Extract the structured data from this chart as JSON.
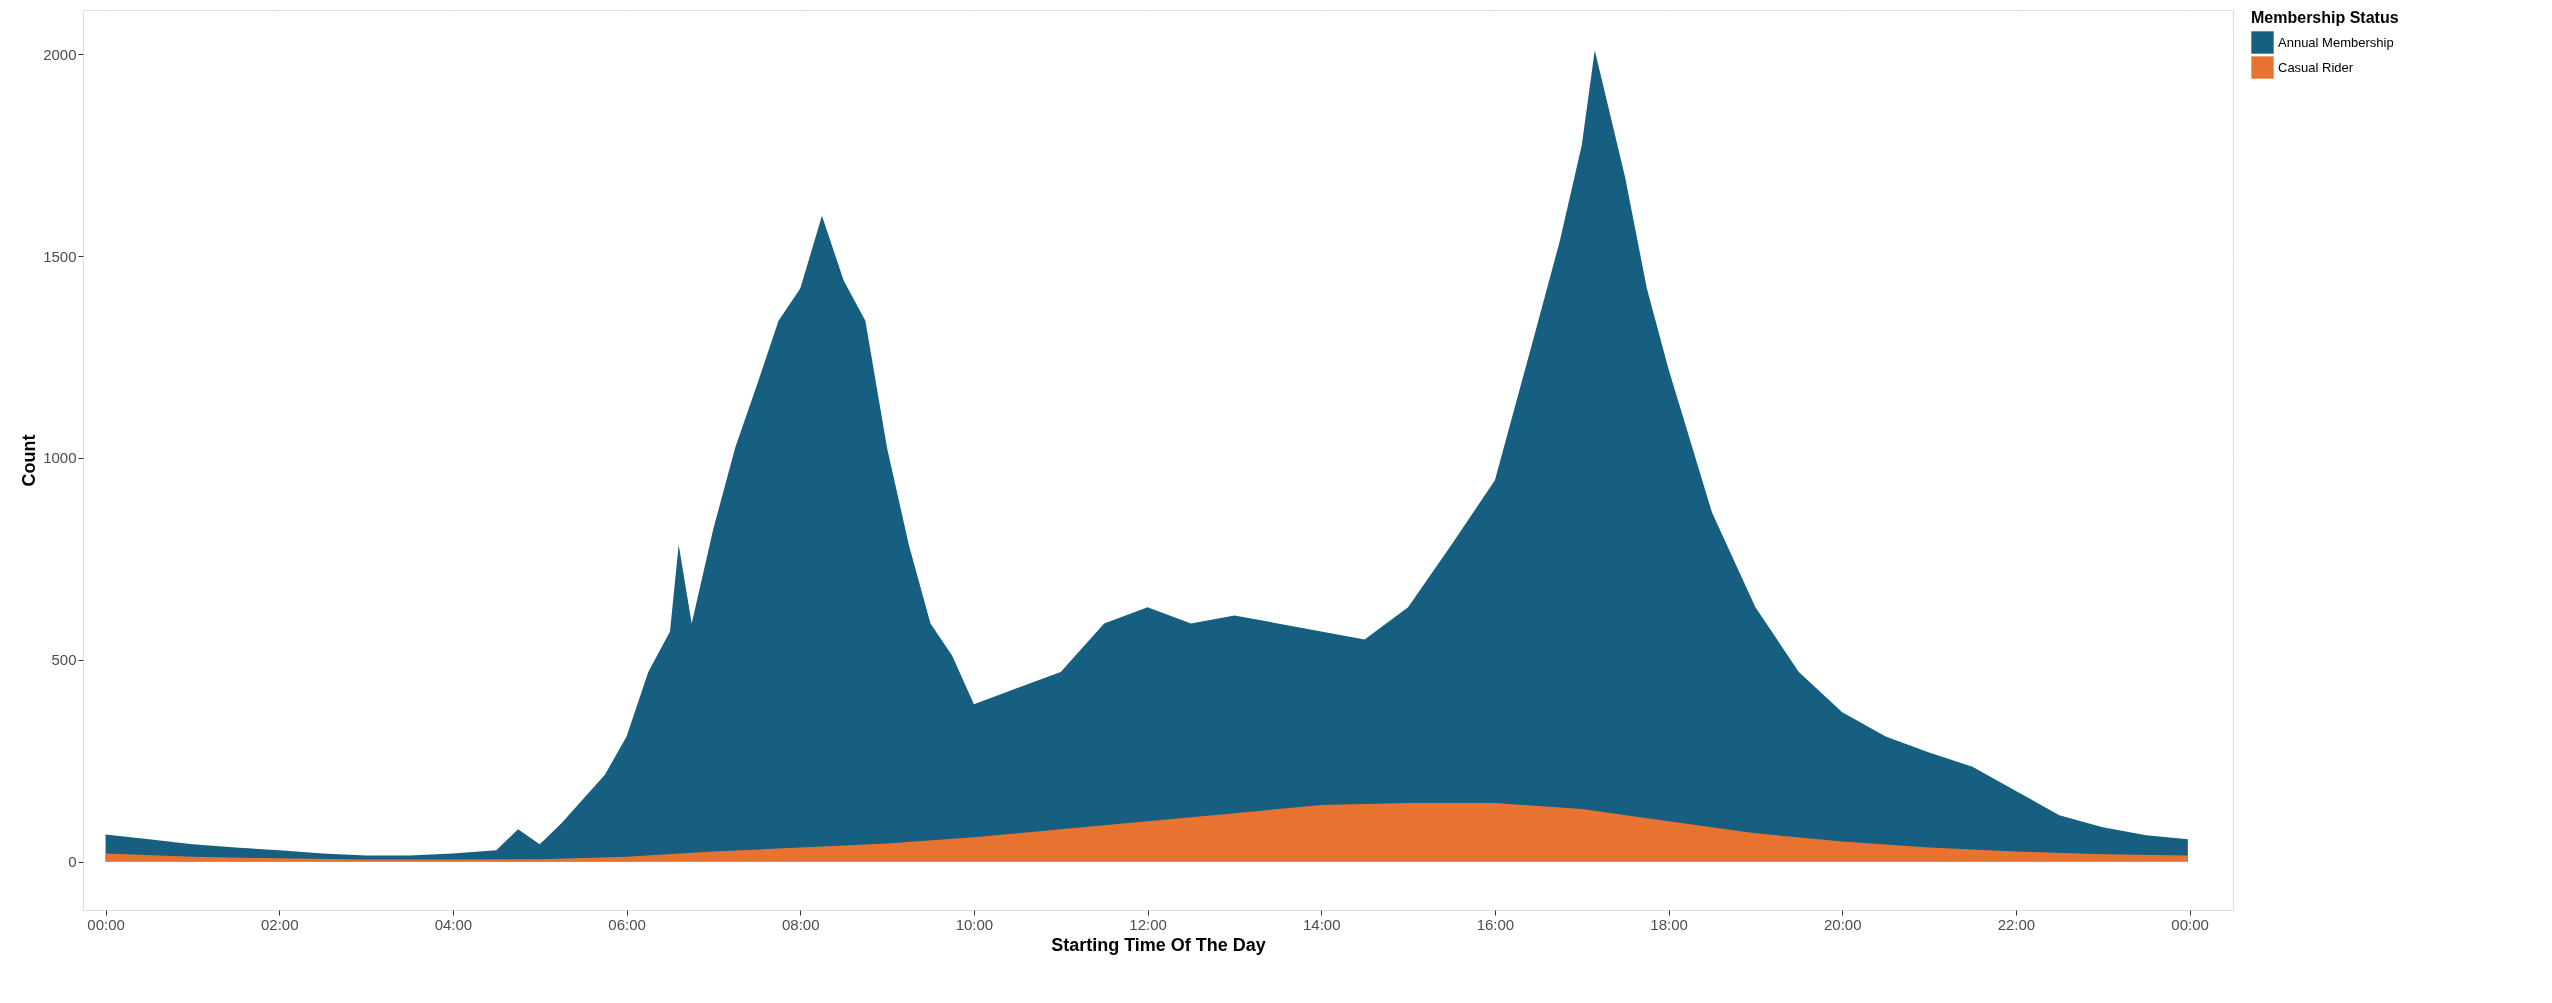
{
  "chart_data": {
    "type": "area",
    "xlabel": "Starting Time Of The Day",
    "ylabel": "Count",
    "legend_title": "Membership Status",
    "xlim": [
      -0.26,
      24.5
    ],
    "ylim": [
      -120,
      2110
    ],
    "xticks": [
      {
        "value": 0,
        "label": "00:00"
      },
      {
        "value": 2,
        "label": "02:00"
      },
      {
        "value": 4,
        "label": "04:00"
      },
      {
        "value": 6,
        "label": "06:00"
      },
      {
        "value": 8,
        "label": "08:00"
      },
      {
        "value": 10,
        "label": "10:00"
      },
      {
        "value": 12,
        "label": "12:00"
      },
      {
        "value": 14,
        "label": "14:00"
      },
      {
        "value": 16,
        "label": "16:00"
      },
      {
        "value": 18,
        "label": "18:00"
      },
      {
        "value": 20,
        "label": "20:00"
      },
      {
        "value": 22,
        "label": "22:00"
      },
      {
        "value": 24,
        "label": "00:00"
      }
    ],
    "yticks": [
      0,
      500,
      1000,
      1500,
      2000
    ],
    "grid": true,
    "legend": "right",
    "series": [
      {
        "name": "Annual Membership",
        "color": "#175f80",
        "x": [
          0,
          0.5,
          1,
          1.5,
          2,
          2.5,
          3,
          3.5,
          4,
          4.5,
          4.75,
          5,
          5.25,
          5.5,
          5.75,
          6,
          6.25,
          6.5,
          6.6,
          6.75,
          7,
          7.25,
          7.5,
          7.75,
          8,
          8.25,
          8.5,
          8.75,
          9,
          9.25,
          9.5,
          9.75,
          10,
          10.5,
          11,
          11.5,
          12,
          12.5,
          13,
          13.5,
          14,
          14.5,
          15,
          15.5,
          16,
          16.5,
          16.75,
          17,
          17.15,
          17.5,
          17.75,
          18,
          18.5,
          19,
          19.5,
          20,
          20.5,
          21,
          21.5,
          22,
          22.5,
          23,
          23.5,
          23.98
        ],
        "values": [
          67,
          55,
          43,
          35,
          28,
          20,
          15,
          15,
          20,
          28,
          80,
          43,
          95,
          155,
          215,
          310,
          470,
          570,
          785,
          590,
          825,
          1025,
          1180,
          1340,
          1420,
          1600,
          1440,
          1340,
          1025,
          785,
          590,
          510,
          390,
          430,
          470,
          590,
          630,
          590,
          610,
          590,
          570,
          550,
          630,
          785,
          945,
          1340,
          1540,
          1775,
          2010,
          1695,
          1420,
          1220,
          865,
          630,
          470,
          370,
          310,
          270,
          235,
          175,
          115,
          85,
          65,
          55
        ]
      },
      {
        "name": "Casual Rider",
        "color": "#e87331",
        "x": [
          0,
          1,
          2,
          3,
          4,
          5,
          6,
          7,
          8,
          9,
          10,
          11,
          12,
          13,
          14,
          15,
          16,
          17,
          18,
          19,
          20,
          21,
          22,
          23,
          23.98
        ],
        "values": [
          20,
          12,
          8,
          5,
          5,
          6,
          12,
          25,
          35,
          45,
          60,
          80,
          100,
          120,
          140,
          145,
          145,
          130,
          100,
          70,
          50,
          35,
          25,
          18,
          15
        ]
      }
    ]
  }
}
